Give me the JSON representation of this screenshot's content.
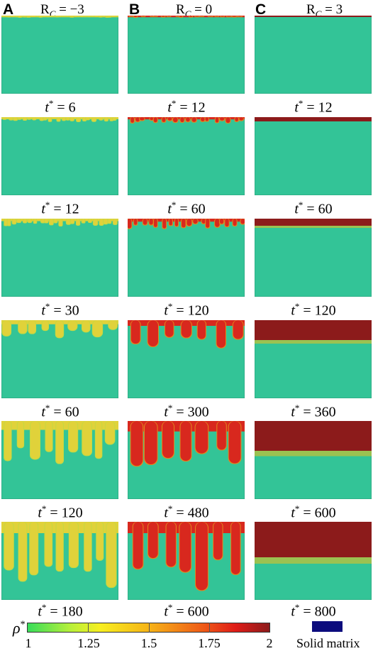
{
  "columns": [
    {
      "letter": "A",
      "title_main": "R",
      "title_sub": "C",
      "title_rest": " = −3",
      "times": [
        "6",
        "12",
        "30",
        "60",
        "120",
        "180"
      ]
    },
    {
      "letter": "B",
      "title_main": "R",
      "title_sub": "C",
      "title_rest": " = 0",
      "times": [
        "12",
        "60",
        "120",
        "300",
        "480",
        "600"
      ]
    },
    {
      "letter": "C",
      "title_main": "R",
      "title_sub": "C",
      "title_rest": " = 3",
      "times": [
        "12",
        "60",
        "120",
        "360",
        "600",
        "800"
      ]
    }
  ],
  "time_symbol": "t",
  "time_sup": "*",
  "time_eq": " = ",
  "colorbar": {
    "symbol": "ρ",
    "symbol_sup": "*",
    "ticks": [
      "1",
      "1.25",
      "1.5",
      "1.75",
      "2"
    ],
    "colors": {
      "low": "#38dd5a",
      "mid": "#f6b417",
      "high": "#8c1b1b"
    }
  },
  "solid_matrix": {
    "label": "Solid matrix",
    "color": "#0c0c7d"
  }
}
